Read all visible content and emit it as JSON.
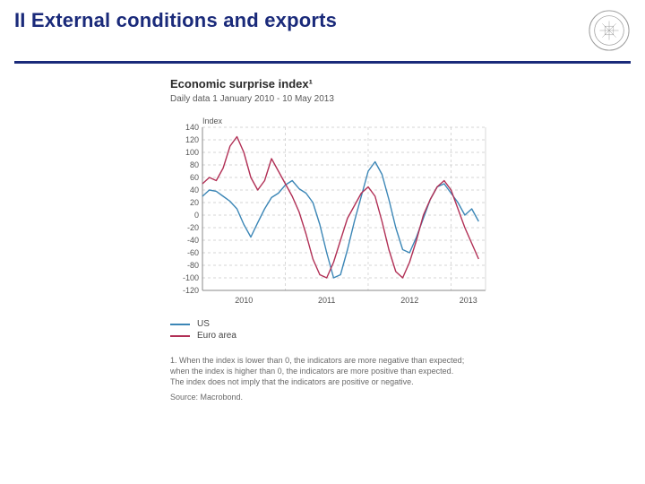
{
  "header": {
    "title": "II External conditions and exports",
    "title_color": "#1a2a7a",
    "rule_color": "#1a2a7a",
    "logo_stroke": "#777777"
  },
  "chart": {
    "type": "line",
    "title": "Economic surprise index¹",
    "subtitle": "Daily data 1 January 2010 - 10 May 2013",
    "axis_title": "Index",
    "background_color": "#ffffff",
    "grid_color": "#c9c9c9",
    "axis_color": "#888888",
    "tick_font_size": 9,
    "axis_title_font_size": 9,
    "title_font_size": 13,
    "subtitle_font_size": 10,
    "ylim": [
      -120,
      140
    ],
    "ytick_step": 20,
    "yticks": [
      140,
      120,
      100,
      80,
      60,
      40,
      20,
      0,
      -20,
      -40,
      -60,
      -80,
      -100,
      -120
    ],
    "x_years": [
      "2010",
      "2011",
      "2012",
      "2013"
    ],
    "x_range_months": 41,
    "series": [
      {
        "name": "US",
        "color": "#3b86b6",
        "line_width": 1.4,
        "points": [
          [
            0,
            30
          ],
          [
            1,
            40
          ],
          [
            2,
            38
          ],
          [
            3,
            30
          ],
          [
            4,
            22
          ],
          [
            5,
            10
          ],
          [
            6,
            -15
          ],
          [
            7,
            -35
          ],
          [
            8,
            -12
          ],
          [
            9,
            10
          ],
          [
            10,
            28
          ],
          [
            11,
            35
          ],
          [
            12,
            48
          ],
          [
            13,
            55
          ],
          [
            14,
            42
          ],
          [
            15,
            35
          ],
          [
            16,
            20
          ],
          [
            17,
            -15
          ],
          [
            18,
            -60
          ],
          [
            19,
            -100
          ],
          [
            20,
            -95
          ],
          [
            21,
            -55
          ],
          [
            22,
            -10
          ],
          [
            23,
            30
          ],
          [
            24,
            70
          ],
          [
            25,
            85
          ],
          [
            26,
            65
          ],
          [
            27,
            25
          ],
          [
            28,
            -20
          ],
          [
            29,
            -55
          ],
          [
            30,
            -60
          ],
          [
            31,
            -35
          ],
          [
            32,
            -5
          ],
          [
            33,
            25
          ],
          [
            34,
            45
          ],
          [
            35,
            50
          ],
          [
            36,
            35
          ],
          [
            37,
            20
          ],
          [
            38,
            0
          ],
          [
            39,
            10
          ],
          [
            40,
            -10
          ]
        ]
      },
      {
        "name": "Euro area",
        "color": "#b12f55",
        "line_width": 1.4,
        "points": [
          [
            0,
            50
          ],
          [
            1,
            60
          ],
          [
            2,
            55
          ],
          [
            3,
            75
          ],
          [
            4,
            110
          ],
          [
            5,
            125
          ],
          [
            6,
            100
          ],
          [
            7,
            60
          ],
          [
            8,
            40
          ],
          [
            9,
            55
          ],
          [
            10,
            90
          ],
          [
            11,
            70
          ],
          [
            12,
            50
          ],
          [
            13,
            30
          ],
          [
            14,
            5
          ],
          [
            15,
            -30
          ],
          [
            16,
            -70
          ],
          [
            17,
            -95
          ],
          [
            18,
            -100
          ],
          [
            19,
            -75
          ],
          [
            20,
            -40
          ],
          [
            21,
            -5
          ],
          [
            22,
            15
          ],
          [
            23,
            35
          ],
          [
            24,
            45
          ],
          [
            25,
            30
          ],
          [
            26,
            -10
          ],
          [
            27,
            -55
          ],
          [
            28,
            -90
          ],
          [
            29,
            -100
          ],
          [
            30,
            -75
          ],
          [
            31,
            -40
          ],
          [
            32,
            0
          ],
          [
            33,
            25
          ],
          [
            34,
            45
          ],
          [
            35,
            55
          ],
          [
            36,
            40
          ],
          [
            37,
            10
          ],
          [
            38,
            -20
          ],
          [
            39,
            -45
          ],
          [
            40,
            -70
          ]
        ]
      }
    ],
    "legend": [
      {
        "label": "US",
        "color": "#3b86b6"
      },
      {
        "label": "Euro area",
        "color": "#b12f55"
      }
    ],
    "footnote": "1. When the index is lower than 0, the indicators are more negative than expected; when the index is higher than 0, the indicators are more positive than expected. The index does not imply that the indicators are positive or negative.",
    "source": "Source: Macrobond."
  }
}
